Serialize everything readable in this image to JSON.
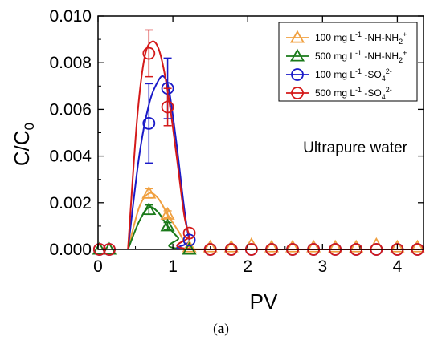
{
  "chart_data": {
    "type": "scatter",
    "xlabel": "PV",
    "ylabel_main": "C/C",
    "ylabel_sub": "0",
    "xlim": [
      0,
      4.35
    ],
    "ylim": [
      0,
      0.01
    ],
    "xticks": [
      0,
      1,
      2,
      3,
      4
    ],
    "yticks": [
      0.0,
      0.002,
      0.004,
      0.006,
      0.008,
      0.01
    ],
    "ytick_labels": [
      "0.000",
      "0.002",
      "0.004",
      "0.006",
      "0.008",
      "0.010"
    ],
    "annotation": "Ultrapure water",
    "legend_position": "top-right",
    "series": [
      {
        "legend": [
          "100 mg L",
          "-1",
          " -NH-NH",
          "2",
          "+"
        ],
        "color": "#f0a040",
        "marker": "triangle",
        "points": [
          {
            "x": 0.02,
            "y": 0.0
          },
          {
            "x": 0.15,
            "y": 0.0
          },
          {
            "x": 0.68,
            "y": 0.0024,
            "err": 0.0002
          },
          {
            "x": 0.93,
            "y": 0.0015,
            "err": 0.00015
          },
          {
            "x": 1.22,
            "y": 0.0001
          },
          {
            "x": 1.5,
            "y": 0.0001
          },
          {
            "x": 1.78,
            "y": 0.0001
          },
          {
            "x": 2.05,
            "y": 0.0002
          },
          {
            "x": 2.32,
            "y": 0.0001
          },
          {
            "x": 2.6,
            "y": 0.0001
          },
          {
            "x": 2.88,
            "y": 0.0001
          },
          {
            "x": 3.17,
            "y": 0.0001
          },
          {
            "x": 3.45,
            "y": 0.0001
          },
          {
            "x": 3.72,
            "y": 0.0002
          },
          {
            "x": 4.0,
            "y": 0.0001
          },
          {
            "x": 4.27,
            "y": 0.0001
          }
        ],
        "curve": [
          [
            0.4,
            0
          ],
          [
            0.55,
            0.0018
          ],
          [
            0.68,
            0.0024
          ],
          [
            0.8,
            0.0022
          ],
          [
            0.93,
            0.0015
          ],
          [
            1.07,
            0.0008
          ],
          [
            1.22,
            0.0001
          ],
          [
            1.5,
            0
          ],
          [
            4.3,
            0
          ]
        ]
      },
      {
        "legend": [
          "500 mg L",
          "-1",
          " -NH-NH",
          "2",
          "+"
        ],
        "color": "#1a7a1a",
        "marker": "triangle",
        "points": [
          {
            "x": 0.02,
            "y": 0.0
          },
          {
            "x": 0.15,
            "y": 0.0
          },
          {
            "x": 0.68,
            "y": 0.0017,
            "err": 0.0002
          },
          {
            "x": 0.93,
            "y": 0.001,
            "err": 0.00015
          },
          {
            "x": 1.22,
            "y": 0.0
          }
        ],
        "curve": [
          [
            0.4,
            0
          ],
          [
            0.55,
            0.0012
          ],
          [
            0.68,
            0.0018
          ],
          [
            0.8,
            0.0016
          ],
          [
            0.93,
            0.001
          ],
          [
            1.07,
            0.0005
          ],
          [
            1.22,
            0.0
          ],
          [
            4.3,
            0
          ]
        ]
      },
      {
        "legend": [
          "100 mg L",
          "-1",
          " -SO",
          "4",
          "2-"
        ],
        "color": "#1a1ac8",
        "marker": "circle",
        "points": [
          {
            "x": 0.02,
            "y": 0.0
          },
          {
            "x": 0.15,
            "y": 0.0
          },
          {
            "x": 0.68,
            "y": 0.0054,
            "err": 0.0017
          },
          {
            "x": 0.93,
            "y": 0.0069,
            "err": 0.0013
          },
          {
            "x": 1.22,
            "y": 0.0004
          },
          {
            "x": 1.5,
            "y": 0.0
          },
          {
            "x": 1.78,
            "y": 0.0
          },
          {
            "x": 2.05,
            "y": 0.0
          },
          {
            "x": 2.32,
            "y": 0.0
          },
          {
            "x": 2.6,
            "y": 0.0
          },
          {
            "x": 2.88,
            "y": 0.0
          },
          {
            "x": 3.17,
            "y": 0.0
          },
          {
            "x": 3.45,
            "y": 0.0
          },
          {
            "x": 3.72,
            "y": 0.0
          },
          {
            "x": 4.0,
            "y": 0.0
          },
          {
            "x": 4.27,
            "y": 0.0
          }
        ],
        "curve": [
          [
            0.4,
            0
          ],
          [
            0.55,
            0.004
          ],
          [
            0.68,
            0.0062
          ],
          [
            0.8,
            0.0072
          ],
          [
            0.88,
            0.0074
          ],
          [
            0.95,
            0.0068
          ],
          [
            1.05,
            0.0045
          ],
          [
            1.15,
            0.0018
          ],
          [
            1.22,
            0.0004
          ],
          [
            1.3,
            0
          ],
          [
            4.3,
            0
          ]
        ]
      },
      {
        "legend": [
          "500 mg L",
          "-1",
          " -SO",
          "4",
          "2-"
        ],
        "color": "#d41a1a",
        "marker": "circle",
        "points": [
          {
            "x": 0.02,
            "y": 0.0
          },
          {
            "x": 0.15,
            "y": 0.0
          },
          {
            "x": 0.68,
            "y": 0.0084,
            "err": 0.001
          },
          {
            "x": 0.93,
            "y": 0.0061,
            "err": 0.0008
          },
          {
            "x": 1.22,
            "y": 0.0007
          },
          {
            "x": 1.5,
            "y": 0.0
          },
          {
            "x": 1.78,
            "y": 0.0
          },
          {
            "x": 2.05,
            "y": 0.0
          },
          {
            "x": 2.32,
            "y": 0.0
          },
          {
            "x": 2.6,
            "y": 0.0
          },
          {
            "x": 2.88,
            "y": 0.0
          },
          {
            "x": 3.17,
            "y": 0.0
          },
          {
            "x": 3.45,
            "y": 0.0
          },
          {
            "x": 3.72,
            "y": 0.0
          },
          {
            "x": 4.0,
            "y": 0.0
          },
          {
            "x": 4.27,
            "y": 0.0
          }
        ],
        "curve": [
          [
            0.4,
            0
          ],
          [
            0.52,
            0.0055
          ],
          [
            0.62,
            0.0082
          ],
          [
            0.72,
            0.0089
          ],
          [
            0.82,
            0.0085
          ],
          [
            0.93,
            0.0068
          ],
          [
            1.05,
            0.004
          ],
          [
            1.15,
            0.0015
          ],
          [
            1.22,
            0.0006
          ],
          [
            1.3,
            0
          ],
          [
            4.3,
            0
          ]
        ]
      }
    ]
  },
  "caption": {
    "open": "(",
    "letter": "a",
    "close": ")"
  }
}
